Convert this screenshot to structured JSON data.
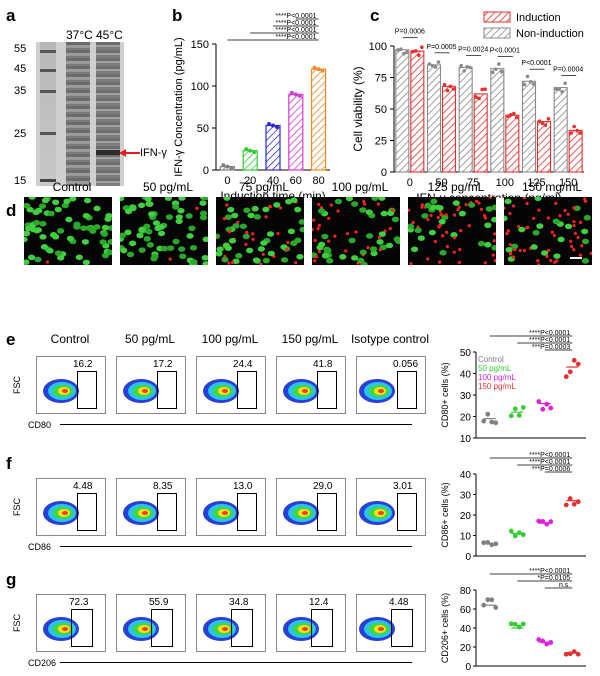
{
  "panel_letters": [
    "a",
    "b",
    "c",
    "d",
    "e",
    "f",
    "g"
  ],
  "gel": {
    "markers": [
      "55",
      "45",
      "35",
      "25",
      "15"
    ],
    "lanes": [
      "37°C",
      "45°C"
    ],
    "band_label": "IFN-γ"
  },
  "chart_data": [
    {
      "id": "b",
      "type": "bar",
      "xlabel": "Induction time (min)",
      "ylabel": "IFN-γ Concentration (pg/mL)",
      "categories": [
        "0",
        "20",
        "40",
        "60",
        "80"
      ],
      "values": [
        4,
        23,
        53,
        90,
        120
      ],
      "ylim": [
        0,
        150
      ],
      "yticks": [
        0,
        50,
        100,
        150
      ],
      "colors": [
        "#7f7f7f",
        "#33cc33",
        "#2a2ad4",
        "#d63ad6",
        "#f08a24"
      ],
      "significance": [
        "****P<0.0001",
        "****P<0.0001",
        "****P<0.0001",
        "****P<0.0001"
      ]
    },
    {
      "id": "c",
      "type": "bar",
      "xlabel": "IFN-γ concentration (pg/ml)",
      "ylabel": "Cell viability (%)",
      "categories": [
        "0",
        "50",
        "75",
        "100",
        "125",
        "150"
      ],
      "series": [
        {
          "name": "Induction",
          "values": [
            96,
            68,
            62,
            45,
            40,
            33
          ],
          "color": "#e53030"
        },
        {
          "name": "Non-induction",
          "values": [
            97,
            85,
            83,
            82,
            72,
            67
          ],
          "color": "#8a8a8a"
        }
      ],
      "ylim": [
        0,
        100
      ],
      "yticks": [
        0,
        25,
        50,
        75,
        100
      ],
      "pvalues": [
        "P=0.0006",
        "P=0.0005",
        "P=0.0024",
        "P<0.0001",
        "P<0.0001",
        "P=0.0004"
      ]
    },
    {
      "id": "e",
      "type": "scatter",
      "ylabel": "CD80+ cells (%)",
      "categories": [
        "Control",
        "50 pg/mL",
        "100 pg/mL",
        "150 pg/mL"
      ],
      "values": [
        19,
        22,
        26,
        43
      ],
      "ylim": [
        10,
        50
      ],
      "yticks": [
        10,
        20,
        30,
        40,
        50
      ],
      "colors": [
        "#808080",
        "#33cc33",
        "#e020e0",
        "#e53030"
      ],
      "significance": [
        "****P<0.0001",
        "****P<0.0001",
        "***P=0.0003"
      ]
    },
    {
      "id": "f",
      "type": "scatter",
      "ylabel": "CD86+ cells (%)",
      "categories": [
        "Control",
        "50 pg/mL",
        "100 pg/mL",
        "150 pg/mL"
      ],
      "values": [
        6,
        11,
        16,
        27
      ],
      "ylim": [
        0,
        40
      ],
      "yticks": [
        0,
        10,
        20,
        30,
        40
      ],
      "colors": [
        "#808080",
        "#33cc33",
        "#e020e0",
        "#e53030"
      ],
      "significance": [
        "****P<0.0001",
        "****P<0.0001",
        "***P=0.0006"
      ]
    },
    {
      "id": "g",
      "type": "scatter",
      "ylabel": "CD206+ cells (%)",
      "categories": [
        "Control",
        "50 pg/mL",
        "100 pg/mL",
        "150 pg/mL"
      ],
      "values": [
        64,
        40,
        25,
        14
      ],
      "ylim": [
        0,
        80
      ],
      "yticks": [
        0,
        20,
        40,
        60,
        80
      ],
      "colors": [
        "#808080",
        "#33cc33",
        "#e020e0",
        "#e53030"
      ],
      "significance": [
        "****P<0.0001",
        "*P=0.0105",
        "n.s."
      ]
    }
  ],
  "micrographs": {
    "labels": [
      "Control",
      "50 pg/mL",
      "75 pg/mL",
      "100 pg/mL",
      "125 pg/mL",
      "150 mg/mL"
    ]
  },
  "flow": {
    "columns": [
      "Control",
      "50 pg/mL",
      "100 pg/mL",
      "150 pg/mL",
      "Isotype control"
    ],
    "y_label": "FSC",
    "rows": [
      {
        "marker": "CD80",
        "values": [
          "16.2",
          "17.2",
          "24.4",
          "41.8",
          "0.056"
        ]
      },
      {
        "marker": "CD86",
        "values": [
          "4.48",
          "8.35",
          "13.0",
          "29.0",
          "3.01"
        ]
      },
      {
        "marker": "CD206",
        "values": [
          "72.3",
          "55.9",
          "34.8",
          "12.4",
          "4.48"
        ]
      }
    ]
  }
}
